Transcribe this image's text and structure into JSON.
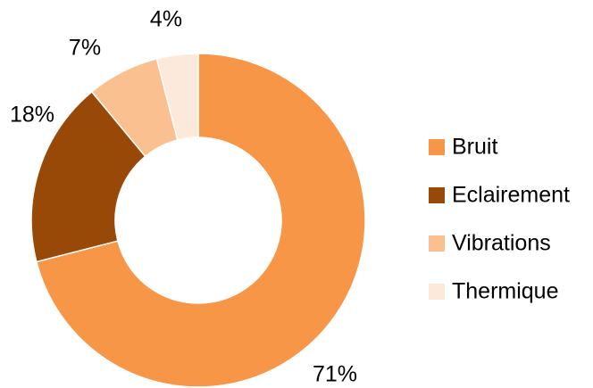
{
  "chart_data": {
    "type": "donut",
    "categories": [
      "Bruit",
      "Eclairement",
      "Vibrations",
      "Thermique"
    ],
    "values": [
      71,
      18,
      7,
      4
    ],
    "value_labels": [
      "71%",
      "18%",
      "7%",
      "4%"
    ],
    "colors": [
      "#f79646",
      "#984807",
      "#fac090",
      "#fde9d9"
    ],
    "legend": "right"
  }
}
